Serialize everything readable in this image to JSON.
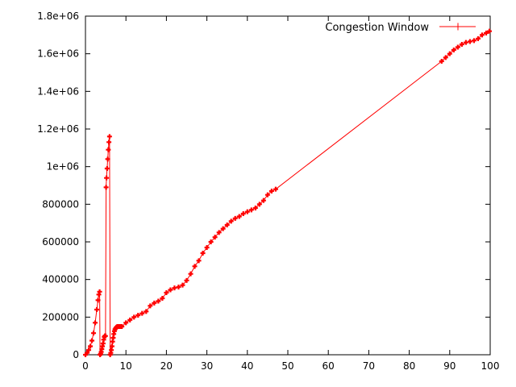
{
  "chart_data": {
    "type": "line",
    "title": "",
    "xlabel": "",
    "ylabel": "",
    "xlim": [
      0,
      100
    ],
    "ylim": [
      0,
      1800000
    ],
    "xticks": [
      0,
      10,
      20,
      30,
      40,
      50,
      60,
      70,
      80,
      90,
      100
    ],
    "yticks": [
      0,
      200000,
      400000,
      600000,
      800000,
      1000000,
      1200000,
      1400000,
      1600000,
      1800000
    ],
    "ytick_labels": [
      "0",
      "200000",
      "400000",
      "600000",
      "800000",
      "1e+06",
      "1.2e+06",
      "1.4e+06",
      "1.6e+06",
      "1.8e+06"
    ],
    "grid": false,
    "legend": "top-right",
    "series": [
      {
        "name": "Congestion Window",
        "color": "#ff0000",
        "marker": "plus",
        "x": [
          0.0,
          0.4,
          0.8,
          1.2,
          1.6,
          2.0,
          2.4,
          2.8,
          3.1,
          3.3,
          3.5,
          3.6,
          3.75,
          3.9,
          4.05,
          4.2,
          4.35,
          4.5,
          4.65,
          4.8,
          4.95,
          5.1,
          5.2,
          5.35,
          5.5,
          5.65,
          5.8,
          5.95,
          6.1,
          6.25,
          6.4,
          6.55,
          6.7,
          6.85,
          7.0,
          7.15,
          7.3,
          7.45,
          7.6,
          7.75,
          7.9,
          8.05,
          8.2,
          8.35,
          8.5,
          8.65,
          8.8,
          9.0,
          10.0,
          11.0,
          12.0,
          13.0,
          14.0,
          15.0,
          16.0,
          17.0,
          18.0,
          19.0,
          20.0,
          21.0,
          22.0,
          23.0,
          24.0,
          25.0,
          26.0,
          27.0,
          28.0,
          29.0,
          30.0,
          31.0,
          32.0,
          33.0,
          34.0,
          35.0,
          36.0,
          37.0,
          38.0,
          39.0,
          40.0,
          41.0,
          42.0,
          43.0,
          44.0,
          45.0,
          46.0,
          47.0,
          88.0,
          89.0,
          90.0,
          91.0,
          92.0,
          93.0,
          94.0,
          95.0,
          96.0,
          97.0,
          98.0,
          99.0,
          99.8
        ],
        "y": [
          0,
          10000,
          25000,
          45000,
          75000,
          115000,
          170000,
          240000,
          290000,
          320000,
          335000,
          0,
          5000,
          15000,
          30000,
          45000,
          60000,
          80000,
          95000,
          100000,
          100000,
          890000,
          940000,
          990000,
          1040000,
          1090000,
          1130000,
          1160000,
          0,
          10000,
          25000,
          45000,
          70000,
          90000,
          110000,
          125000,
          135000,
          140000,
          145000,
          148000,
          150000,
          150000,
          150000,
          150000,
          150000,
          150000,
          150000,
          150000,
          170000,
          185000,
          200000,
          210000,
          220000,
          230000,
          260000,
          275000,
          285000,
          300000,
          330000,
          345000,
          355000,
          360000,
          370000,
          395000,
          430000,
          470000,
          500000,
          540000,
          570000,
          600000,
          625000,
          650000,
          670000,
          690000,
          710000,
          725000,
          735000,
          750000,
          760000,
          770000,
          780000,
          800000,
          820000,
          850000,
          870000,
          880000,
          1560000,
          1580000,
          1600000,
          1620000,
          1635000,
          1650000,
          1660000,
          1665000,
          1670000,
          1680000,
          1700000,
          1710000,
          1720000
        ]
      }
    ]
  }
}
